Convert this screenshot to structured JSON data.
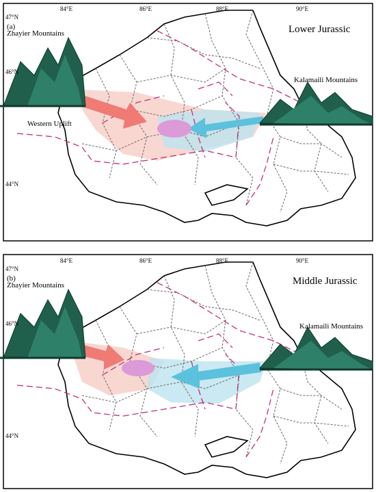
{
  "panels": [
    {
      "label": "(a)",
      "title": "Lower Jurassic",
      "lon_labels": [
        "84°E",
        "86°E",
        "88°E",
        "90°E"
      ],
      "lat_labels": [
        "47°N",
        "46°N",
        "44°N"
      ],
      "annotations": [
        "Zhayier Mountains",
        "Kalamaili Mountains",
        "Western Uplift"
      ]
    },
    {
      "label": "(b)",
      "title": "Middle Jurassic",
      "lon_labels": [
        "84°E",
        "86°E",
        "88°E",
        "90°E"
      ],
      "lat_labels": [
        "47°N",
        "46°N",
        "44°N"
      ],
      "annotations": [
        "Zhayier Mountains",
        "Kalamaili Mountains"
      ]
    }
  ]
}
